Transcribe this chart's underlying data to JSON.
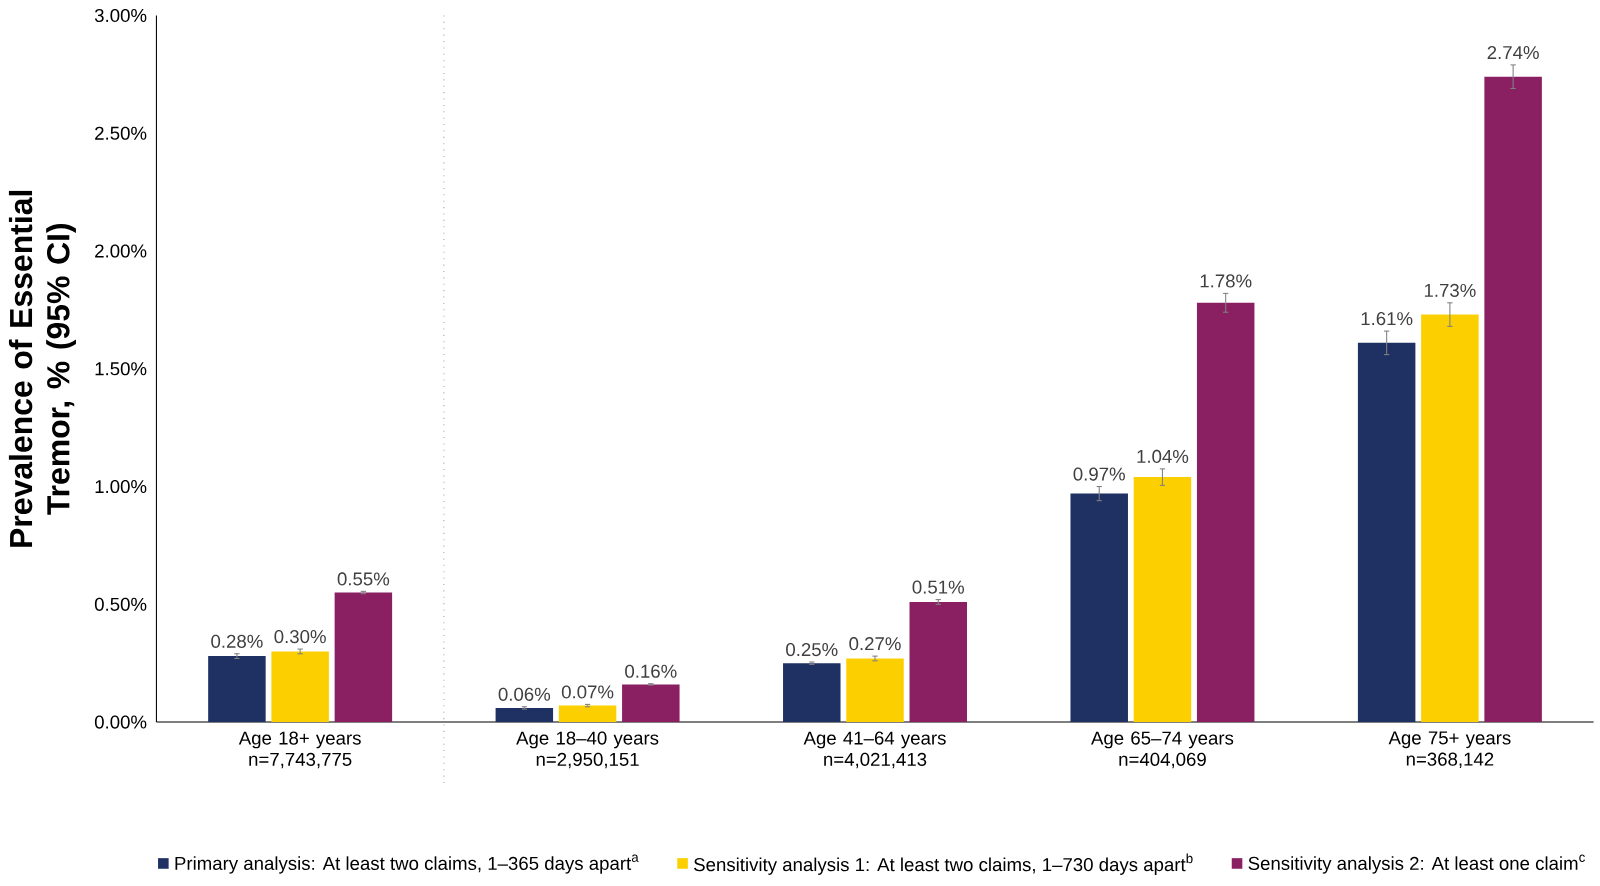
{
  "chart_data": {
    "type": "bar",
    "ylabel": "Prevalence of Essential Tremor, % (95% CI)",
    "categories": [
      "Age 18+ years n=7,743,775",
      "Age 18–40 years n=2,950,151",
      "Age 41–64 years n=4,021,413",
      "Age 65–74 years n=404,069",
      "Age 75+ years n=368,142"
    ],
    "series": [
      {
        "name": "Primary analysis: At least two claims, 1–365 days apart$^{a}$",
        "color": "#1f3063",
        "values": [
          0.28,
          0.06,
          0.25,
          0.97,
          1.61
        ],
        "errors": [
          0.01,
          0.005,
          0.005,
          0.03,
          0.05
        ],
        "value_labels": [
          "0.28%",
          "0.06%",
          "0.25%",
          "0.97%",
          "1.61%"
        ]
      },
      {
        "name": "Sensitivity analysis 1: At least two claims, 1–730 days apart$^{b}$",
        "color": "#fcd000",
        "values": [
          0.3,
          0.07,
          0.27,
          1.04,
          1.73
        ],
        "errors": [
          0.01,
          0.005,
          0.01,
          0.035,
          0.05
        ],
        "value_labels": [
          "0.30%",
          "0.07%",
          "0.27%",
          "1.04%",
          "1.73%"
        ]
      },
      {
        "name": "Sensitivity analysis 2: At least one claim$^{c}$",
        "color": "#8a1f62",
        "values": [
          0.55,
          0.16,
          0.51,
          1.78,
          2.74
        ],
        "errors": [
          0.005,
          0.003,
          0.01,
          0.04,
          0.05
        ],
        "value_labels": [
          "0.55%",
          "0.16%",
          "0.51%",
          "1.78%",
          "2.74%"
        ]
      }
    ],
    "ylim": [
      0,
      3
    ],
    "yticks": [
      {
        "value": 0,
        "label": "0.00%"
      },
      {
        "value": 0.5,
        "label": "0.50%"
      },
      {
        "value": 1,
        "label": "1.00%"
      },
      {
        "value": 1.5,
        "label": "1.50%"
      },
      {
        "value": 2,
        "label": "2.00%"
      },
      {
        "value": 2.5,
        "label": "2.50%"
      },
      {
        "value": 3,
        "label": "3.00%"
      }
    ],
    "legend": "bottom",
    "grid": false
  }
}
